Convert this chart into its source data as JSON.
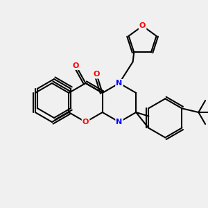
{
  "title": "",
  "background_color": "#f0f0f0",
  "bond_color": "#000000",
  "heteroatom_colors": {
    "O": "#ff0000",
    "N": "#0000ff"
  },
  "figsize": [
    3.0,
    3.0
  ],
  "dpi": 100
}
